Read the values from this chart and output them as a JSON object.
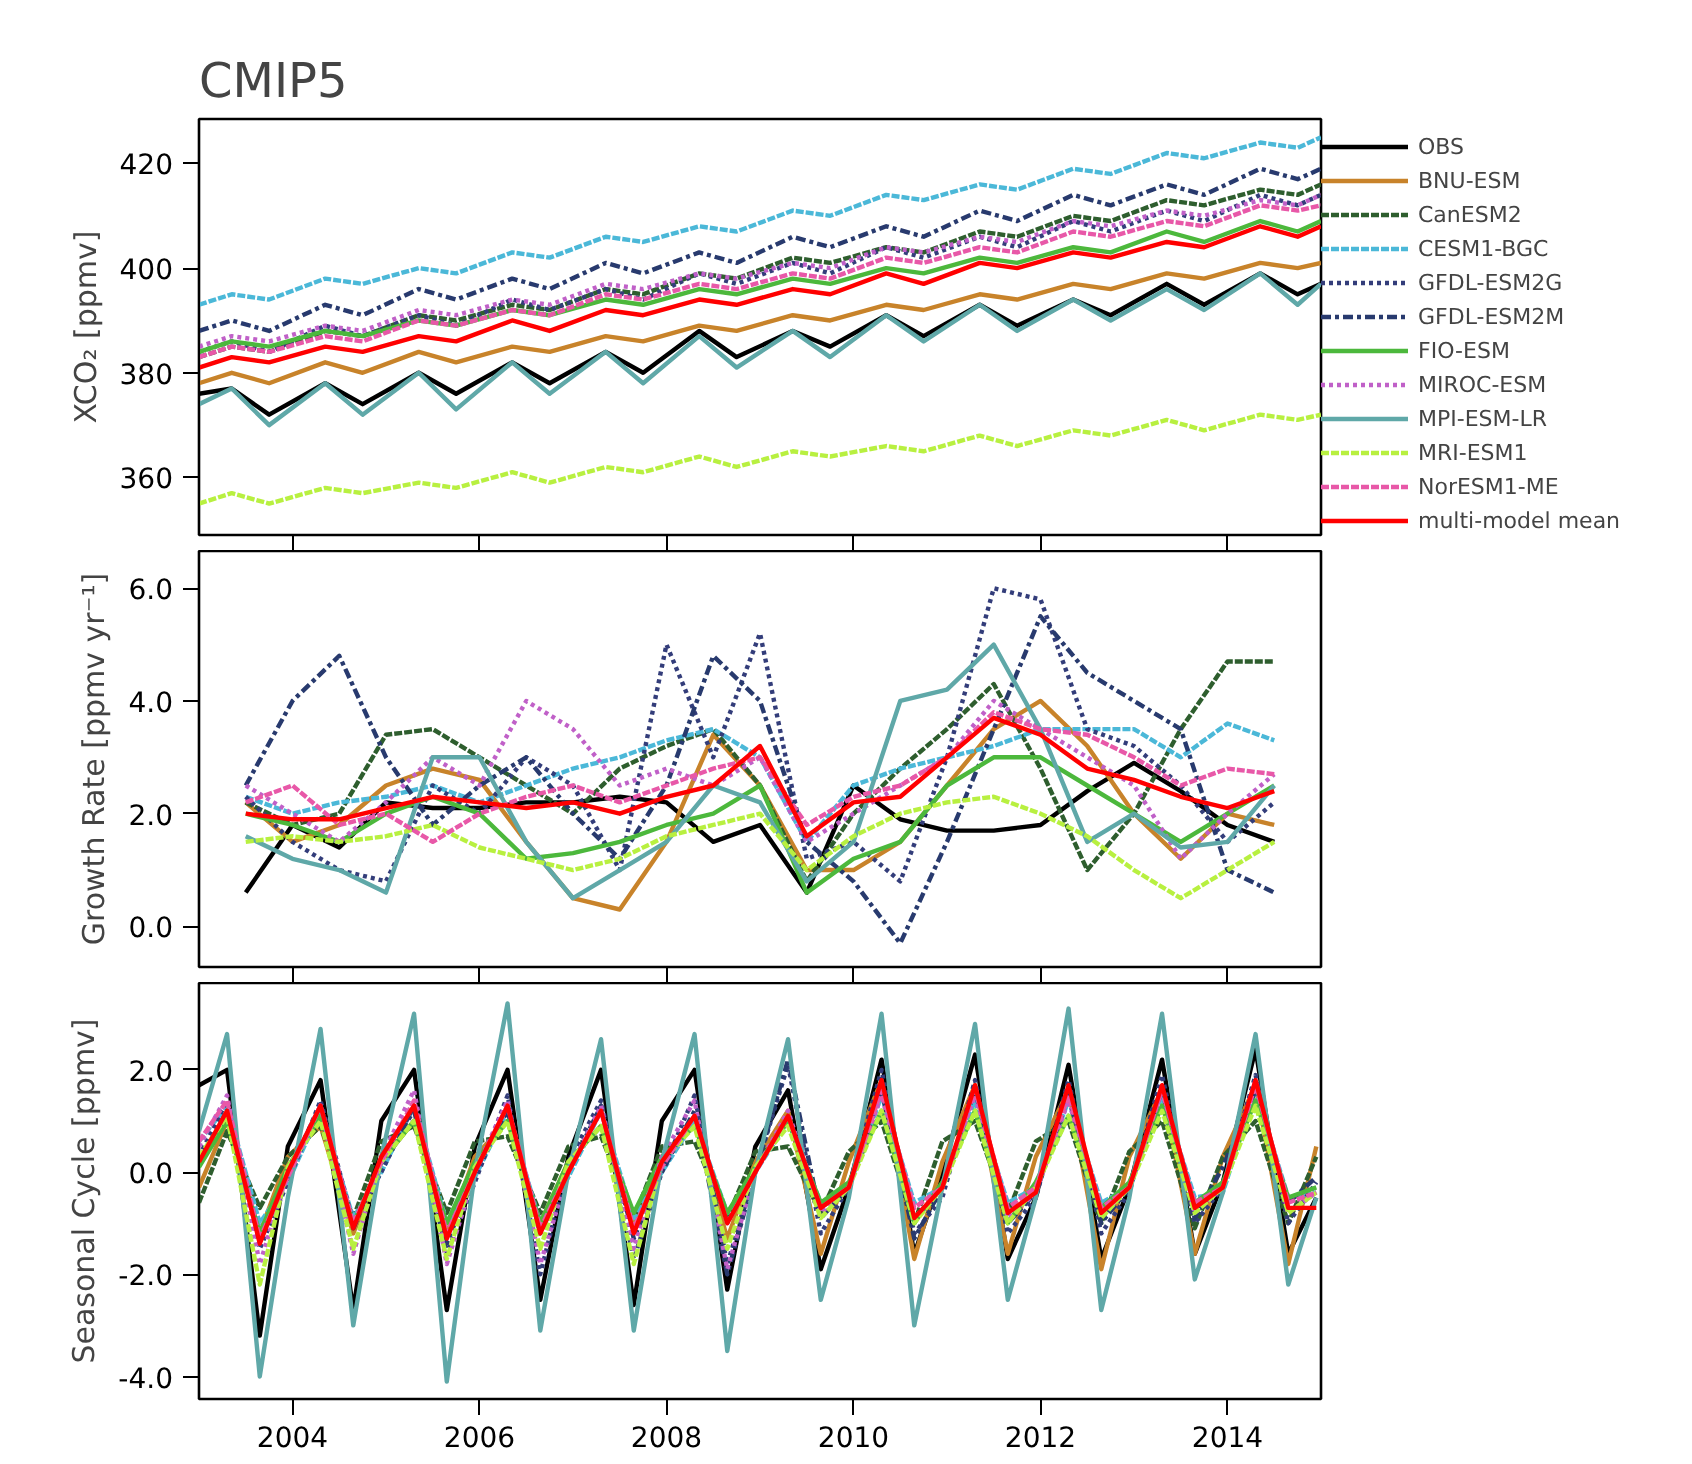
{
  "chart_data": [
    {
      "type": "line",
      "title": "CMIP5",
      "ylabel": "XCO₂ [ppmv]",
      "tick_labels": "y",
      "legend": "right",
      "grid": false,
      "marker": "none",
      "xlim": [
        2003,
        2015
      ],
      "xticks": [
        2004,
        2006,
        2008,
        2010,
        2012,
        2014
      ],
      "ylim": [
        349,
        428.5
      ],
      "yticks": [
        360,
        380,
        400,
        420
      ],
      "x": [
        2003,
        2003.35,
        2003.75,
        2004.35,
        2004.75,
        2005.35,
        2005.75,
        2006.35,
        2006.75,
        2007.35,
        2007.75,
        2008.35,
        2008.75,
        2009.35,
        2009.75,
        2010.35,
        2010.75,
        2011.35,
        2011.75,
        2012.35,
        2012.75,
        2013.35,
        2013.75,
        2014.35,
        2014.75,
        2015
      ],
      "series": [
        {
          "name": "OBS",
          "color": "#000000",
          "line_style": "solid",
          "values": [
            376,
            377,
            372,
            378,
            374,
            380,
            376,
            382,
            378,
            384,
            380,
            388,
            383,
            388,
            385,
            391,
            387,
            393,
            389,
            394,
            391,
            397,
            393,
            399,
            395,
            397
          ]
        },
        {
          "name": "BNU-ESM",
          "color": "#c8832a",
          "line_style": "solid",
          "values": [
            378,
            380,
            378,
            382,
            380,
            384,
            382,
            385,
            384,
            387,
            386,
            389,
            388,
            391,
            390,
            393,
            392,
            395,
            394,
            397,
            396,
            399,
            398,
            401,
            400,
            401
          ]
        },
        {
          "name": "CanESM2",
          "color": "#2e5e2e",
          "line_style": "dashed",
          "values": [
            383,
            385,
            384,
            388,
            387,
            391,
            390,
            393,
            392,
            396,
            395,
            399,
            398,
            402,
            401,
            404,
            403,
            407,
            406,
            410,
            409,
            413,
            412,
            415,
            414,
            416
          ]
        },
        {
          "name": "CESM1-BGC",
          "color": "#4bb8d8",
          "line_style": "dashed",
          "values": [
            393,
            395,
            394,
            398,
            397,
            400,
            399,
            403,
            402,
            406,
            405,
            408,
            407,
            411,
            410,
            414,
            413,
            416,
            415,
            419,
            418,
            422,
            421,
            424,
            423,
            425
          ]
        },
        {
          "name": "GFDL-ESM2G",
          "color": "#333d7a",
          "line_style": "dotted",
          "values": [
            384,
            386,
            384,
            389,
            387,
            391,
            389,
            394,
            392,
            396,
            394,
            399,
            397,
            401,
            399,
            404,
            402,
            406,
            404,
            409,
            407,
            411,
            409,
            414,
            412,
            414
          ]
        },
        {
          "name": "GFDL-ESM2M",
          "color": "#283a6e",
          "line_style": "dashdot",
          "values": [
            388,
            390,
            388,
            393,
            391,
            396,
            394,
            398,
            396,
            401,
            399,
            403,
            401,
            406,
            404,
            408,
            406,
            411,
            409,
            414,
            412,
            416,
            414,
            419,
            417,
            419
          ]
        },
        {
          "name": "FIO-ESM",
          "color": "#4cb83c",
          "line_style": "solid",
          "values": [
            384,
            386,
            385,
            388,
            387,
            390,
            389,
            392,
            391,
            394,
            393,
            396,
            395,
            398,
            397,
            400,
            399,
            402,
            401,
            404,
            403,
            407,
            405,
            409,
            407,
            409
          ]
        },
        {
          "name": "MIROC-ESM",
          "color": "#c060c8",
          "line_style": "dotted",
          "values": [
            385,
            387,
            386,
            389,
            388,
            392,
            391,
            394,
            393,
            397,
            396,
            399,
            398,
            401,
            400,
            404,
            403,
            406,
            405,
            409,
            408,
            411,
            410,
            413,
            412,
            414
          ]
        },
        {
          "name": "MPI-ESM-LR",
          "color": "#5fa8a8",
          "line_style": "solid",
          "values": [
            374,
            377,
            370,
            378,
            372,
            380,
            373,
            382,
            376,
            384,
            378,
            387,
            381,
            388,
            383,
            391,
            386,
            393,
            388,
            394,
            390,
            396,
            392,
            399,
            393,
            397
          ]
        },
        {
          "name": "MRI-ESM1",
          "color": "#b8f040",
          "line_style": "dashed",
          "values": [
            355,
            357,
            355,
            358,
            357,
            359,
            358,
            361,
            359,
            362,
            361,
            364,
            362,
            365,
            364,
            366,
            365,
            368,
            366,
            369,
            368,
            371,
            369,
            372,
            371,
            372
          ]
        },
        {
          "name": "NorESM1-ME",
          "color": "#e858a8",
          "line_style": "dashed",
          "values": [
            383,
            385,
            384,
            387,
            386,
            390,
            389,
            392,
            391,
            395,
            394,
            397,
            396,
            399,
            398,
            402,
            401,
            404,
            403,
            407,
            406,
            409,
            408,
            412,
            411,
            412
          ]
        },
        {
          "name": "multi-model mean",
          "color": "#ff0000",
          "line_style": "solid",
          "values": [
            381,
            383,
            382,
            385,
            384,
            387,
            386,
            390,
            388,
            392,
            391,
            394,
            393,
            396,
            395,
            399,
            397,
            401,
            400,
            403,
            402,
            405,
            404,
            408,
            406,
            408
          ]
        }
      ]
    },
    {
      "type": "line",
      "ylabel": "Growth Rate [ppmv yr⁻¹]",
      "tick_labels": "y",
      "grid": false,
      "marker": "none",
      "xlim": [
        2003,
        2015
      ],
      "xticks": [
        2004,
        2006,
        2008,
        2010,
        2012,
        2014
      ],
      "ylim": [
        -0.72,
        6.66
      ],
      "yticks": [
        {
          "value": 0,
          "label": "0.0"
        },
        {
          "value": 2,
          "label": "2.0"
        },
        {
          "value": 4,
          "label": "4.0"
        },
        {
          "value": 6,
          "label": "6.0"
        }
      ],
      "x": [
        2003.5,
        2004,
        2004.5,
        2005,
        2005.5,
        2006,
        2006.5,
        2007,
        2007.5,
        2008,
        2008.5,
        2009,
        2009.5,
        2010,
        2010.5,
        2011,
        2011.5,
        2012,
        2012.5,
        2013,
        2013.5,
        2014,
        2014.5
      ],
      "series": [
        {
          "color": "#000000",
          "line_style": "solid",
          "values": [
            0.6,
            1.8,
            1.4,
            2.2,
            2.1,
            2.1,
            2.2,
            2.2,
            2.3,
            2.2,
            1.5,
            1.8,
            0.6,
            2.5,
            1.9,
            1.7,
            1.7,
            1.8,
            2.4,
            2.9,
            2.4,
            1.8,
            1.5
          ]
        },
        {
          "color": "#c8832a",
          "line_style": "solid",
          "values": [
            2.2,
            1.5,
            1.8,
            2.5,
            2.8,
            2.6,
            1.5,
            0.5,
            0.3,
            1.5,
            3.4,
            2.5,
            1.0,
            1.0,
            1.5,
            2.5,
            3.5,
            4.0,
            3.2,
            2.0,
            1.2,
            2.0,
            1.8
          ]
        },
        {
          "color": "#2e5e2e",
          "line_style": "dashed",
          "values": [
            2.2,
            1.8,
            2.0,
            3.4,
            3.5,
            3.0,
            2.5,
            2.0,
            2.8,
            3.2,
            3.5,
            2.5,
            0.8,
            2.0,
            2.8,
            3.5,
            4.3,
            2.8,
            1.0,
            2.0,
            3.5,
            4.7,
            4.7
          ]
        },
        {
          "color": "#4bb8d8",
          "line_style": "dashed",
          "values": [
            2.3,
            2.0,
            2.2,
            2.3,
            2.5,
            2.2,
            2.5,
            2.8,
            3.0,
            3.3,
            3.5,
            3.0,
            1.5,
            2.5,
            2.8,
            3.0,
            3.2,
            3.5,
            3.5,
            3.5,
            3.0,
            3.6,
            3.3
          ]
        },
        {
          "color": "#333d7a",
          "line_style": "dotted",
          "values": [
            2.3,
            1.5,
            1.0,
            0.8,
            2.5,
            2.0,
            3.0,
            2.5,
            1.0,
            5.0,
            3.0,
            5.2,
            1.2,
            1.5,
            0.8,
            3.0,
            6.0,
            5.8,
            3.5,
            3.2,
            2.5,
            1.5,
            2.2
          ]
        },
        {
          "color": "#283a6e",
          "line_style": "dashdot",
          "values": [
            2.5,
            4.0,
            4.8,
            3.0,
            1.8,
            2.5,
            3.0,
            2.0,
            1.2,
            2.5,
            4.8,
            4.0,
            1.5,
            0.8,
            -0.3,
            1.5,
            3.5,
            5.5,
            4.5,
            4.0,
            3.5,
            1.0,
            0.6
          ]
        },
        {
          "color": "#4cb83c",
          "line_style": "solid",
          "values": [
            2.0,
            1.8,
            1.5,
            2.0,
            2.3,
            2.0,
            1.2,
            1.3,
            1.5,
            1.8,
            2.0,
            2.5,
            0.6,
            1.2,
            1.5,
            2.5,
            3.0,
            3.0,
            2.5,
            2.0,
            1.5,
            2.0,
            2.5
          ]
        },
        {
          "color": "#c060c8",
          "line_style": "dotted",
          "values": [
            2.5,
            2.0,
            1.5,
            2.2,
            3.0,
            2.5,
            4.0,
            3.5,
            2.5,
            2.8,
            2.5,
            3.0,
            1.5,
            2.0,
            2.5,
            3.0,
            4.0,
            3.5,
            3.0,
            2.5,
            1.2,
            2.0,
            2.7
          ]
        },
        {
          "color": "#5fa8a8",
          "line_style": "solid",
          "values": [
            1.6,
            1.2,
            1.0,
            0.6,
            3.0,
            3.0,
            1.5,
            0.5,
            1.0,
            1.5,
            2.5,
            2.2,
            0.8,
            1.5,
            4.0,
            4.2,
            5.0,
            3.5,
            1.5,
            2.0,
            1.4,
            1.5,
            2.5
          ]
        },
        {
          "color": "#b8f040",
          "line_style": "dashed",
          "values": [
            1.5,
            1.6,
            1.5,
            1.6,
            1.8,
            1.4,
            1.2,
            1.0,
            1.2,
            1.6,
            1.8,
            2.0,
            1.0,
            1.6,
            2.0,
            2.2,
            2.3,
            2.0,
            1.6,
            1.0,
            0.5,
            1.0,
            1.5
          ]
        },
        {
          "color": "#e858a8",
          "line_style": "dashed",
          "values": [
            2.2,
            2.5,
            1.8,
            2.0,
            1.5,
            2.0,
            2.3,
            2.5,
            2.2,
            2.5,
            2.8,
            3.0,
            1.8,
            2.3,
            2.5,
            3.0,
            3.8,
            3.5,
            3.4,
            3.0,
            2.5,
            2.8,
            2.7
          ]
        },
        {
          "color": "#ff0000",
          "line_style": "solid",
          "values": [
            2.0,
            1.9,
            1.9,
            2.1,
            2.3,
            2.2,
            2.1,
            2.2,
            2.0,
            2.3,
            2.5,
            3.2,
            1.6,
            2.2,
            2.3,
            3.0,
            3.7,
            3.4,
            2.8,
            2.6,
            2.3,
            2.1,
            2.4
          ]
        }
      ]
    },
    {
      "type": "line",
      "ylabel": "Seasonal Cycle [ppmv]",
      "grid": false,
      "marker": "none",
      "xlim": [
        2003,
        2015
      ],
      "xticks": [
        2004,
        2006,
        2008,
        2010,
        2012,
        2014
      ],
      "ylim": [
        -4.44,
        3.7
      ],
      "yticks": [
        {
          "value": -4,
          "label": "-4.0"
        },
        {
          "value": -2,
          "label": "-2.0"
        },
        {
          "value": 0,
          "label": "0.0"
        },
        {
          "value": 2,
          "label": "2.0"
        }
      ],
      "x": [
        2003,
        2003.3,
        2003.65,
        2003.95,
        2004.3,
        2004.65,
        2004.95,
        2005.3,
        2005.65,
        2005.95,
        2006.3,
        2006.65,
        2006.95,
        2007.3,
        2007.65,
        2007.95,
        2008.3,
        2008.65,
        2008.95,
        2009.3,
        2009.65,
        2009.95,
        2010.3,
        2010.65,
        2010.95,
        2011.3,
        2011.65,
        2011.95,
        2012.3,
        2012.65,
        2012.95,
        2013.3,
        2013.65,
        2013.95,
        2014.3,
        2014.65,
        2014.95
      ],
      "series": [
        {
          "color": "#000000",
          "line_style": "solid",
          "values": [
            1.7,
            2.0,
            -3.2,
            0.5,
            1.8,
            -2.7,
            1.0,
            2.0,
            -2.7,
            0.5,
            2.0,
            -2.5,
            0.3,
            2.0,
            -2.6,
            1.0,
            2.0,
            -2.3,
            0.5,
            1.6,
            -1.9,
            -0.3,
            2.2,
            -1.6,
            0.0,
            2.3,
            -1.7,
            -0.5,
            2.1,
            -1.7,
            -0.3,
            2.2,
            -1.6,
            -0.2,
            2.4,
            -1.6,
            -0.5
          ]
        },
        {
          "color": "#c8832a",
          "line_style": "solid",
          "values": [
            -0.3,
            1.0,
            -1.2,
            0.3,
            0.9,
            -1.2,
            0.2,
            1.0,
            -1.2,
            0.3,
            1.0,
            -1.0,
            0.2,
            0.9,
            -1.0,
            0.3,
            1.0,
            -1.3,
            0.2,
            1.2,
            -1.6,
            0.2,
            1.8,
            -1.7,
            0.2,
            1.7,
            -1.6,
            0.3,
            1.6,
            -1.9,
            0.3,
            1.6,
            -1.6,
            0.3,
            1.7,
            -1.8,
            0.5
          ]
        },
        {
          "color": "#2e5e2e",
          "line_style": "dashed",
          "values": [
            -0.6,
            0.8,
            -0.7,
            0.3,
            0.9,
            -0.9,
            0.6,
            0.9,
            -0.8,
            0.6,
            0.7,
            -0.8,
            0.5,
            0.7,
            -0.9,
            0.5,
            0.6,
            -0.9,
            0.4,
            0.5,
            -0.8,
            0.4,
            1.0,
            -1.0,
            0.6,
            1.0,
            -0.8,
            0.6,
            1.0,
            -1.0,
            0.4,
            1.0,
            -1.1,
            0.3,
            1.0,
            -1.0,
            0.3
          ]
        },
        {
          "color": "#4bb8d8",
          "line_style": "dashed",
          "values": [
            0.6,
            1.3,
            -1.0,
            -0.2,
            1.2,
            -0.9,
            0.0,
            1.3,
            -1.0,
            -0.1,
            1.2,
            -1.0,
            -0.1,
            1.2,
            -0.9,
            0.0,
            1.0,
            -0.8,
            0.0,
            1.0,
            -0.6,
            -0.3,
            1.5,
            -0.6,
            -0.3,
            1.4,
            -0.6,
            -0.3,
            1.4,
            -0.6,
            -0.3,
            1.5,
            -0.5,
            -0.4,
            1.6,
            -0.5,
            -0.4
          ]
        },
        {
          "color": "#333d7a",
          "line_style": "dotted",
          "values": [
            0.3,
            1.4,
            -1.5,
            -0.2,
            1.4,
            -1.0,
            0.0,
            1.3,
            -1.6,
            -0.2,
            1.5,
            -2.0,
            0.2,
            1.4,
            -1.7,
            0.0,
            1.5,
            -1.8,
            0.0,
            2.1,
            -1.2,
            -0.3,
            2.0,
            -1.2,
            -0.5,
            1.8,
            -1.2,
            -0.5,
            1.8,
            -1.2,
            -0.4,
            1.9,
            -1.0,
            -0.3,
            1.9,
            -1.0,
            -0.2
          ]
        },
        {
          "color": "#283a6e",
          "line_style": "dashdot",
          "values": [
            0.2,
            1.2,
            -1.3,
            0.0,
            1.3,
            -1.1,
            0.2,
            1.2,
            -1.4,
            0.0,
            1.2,
            -1.2,
            0.0,
            1.3,
            -1.3,
            0.0,
            1.2,
            -2.0,
            0.0,
            2.2,
            -0.9,
            -0.3,
            1.6,
            -1.3,
            -0.3,
            1.6,
            -1.0,
            -0.4,
            1.5,
            -1.0,
            -0.3,
            1.6,
            -0.9,
            0.1,
            1.6,
            -0.6,
            -0.1
          ]
        },
        {
          "color": "#4cb83c",
          "line_style": "solid",
          "values": [
            0.1,
            1.0,
            -1.2,
            0.1,
            1.1,
            -1.0,
            0.2,
            1.0,
            -1.0,
            0.2,
            1.0,
            -1.0,
            0.2,
            0.9,
            -0.8,
            0.3,
            0.9,
            -0.8,
            0.1,
            1.0,
            -0.6,
            -0.2,
            1.2,
            -1.0,
            -0.2,
            1.2,
            -1.0,
            -0.2,
            1.1,
            -0.7,
            -0.2,
            1.3,
            -0.6,
            -0.2,
            1.4,
            -0.5,
            -0.3
          ]
        },
        {
          "color": "#c060c8",
          "line_style": "dotted",
          "values": [
            0.5,
            1.5,
            -1.8,
            0.0,
            1.3,
            -1.6,
            0.3,
            1.6,
            -1.8,
            0.0,
            1.4,
            -1.8,
            0.0,
            1.3,
            -1.5,
            0.3,
            1.4,
            -1.9,
            0.0,
            1.2,
            -0.8,
            -0.3,
            1.5,
            -0.9,
            -0.3,
            1.5,
            -0.9,
            -0.4,
            1.4,
            -0.8,
            -0.3,
            1.6,
            -0.8,
            -0.3,
            1.8,
            -0.8,
            -0.4
          ]
        },
        {
          "color": "#5fa8a8",
          "line_style": "solid",
          "values": [
            0.8,
            2.7,
            -4.0,
            -0.5,
            2.8,
            -3.0,
            0.3,
            3.1,
            -4.1,
            0.0,
            3.3,
            -3.1,
            0.0,
            2.6,
            -3.1,
            0.2,
            2.7,
            -3.5,
            0.0,
            2.6,
            -2.5,
            -0.5,
            3.1,
            -3.0,
            -0.3,
            2.9,
            -2.5,
            -0.5,
            3.2,
            -2.7,
            -0.5,
            3.1,
            -2.1,
            -0.4,
            2.7,
            -2.2,
            -0.5
          ]
        },
        {
          "color": "#b8f040",
          "line_style": "dashed",
          "values": [
            0.3,
            1.1,
            -2.2,
            0.1,
            1.0,
            -1.5,
            0.2,
            1.0,
            -1.7,
            0.1,
            1.0,
            -1.5,
            0.2,
            0.9,
            -1.8,
            0.2,
            0.9,
            -1.5,
            0.1,
            0.9,
            -0.9,
            -0.3,
            1.2,
            -1.0,
            -0.3,
            1.2,
            -1.0,
            -0.3,
            1.1,
            -0.9,
            -0.3,
            1.2,
            -0.8,
            -0.3,
            1.3,
            -0.8,
            -0.4
          ]
        },
        {
          "color": "#e858a8",
          "line_style": "dashed",
          "values": [
            0.6,
            1.4,
            -1.3,
            -0.1,
            1.3,
            -1.0,
            0.2,
            1.4,
            -1.2,
            0.0,
            1.3,
            -1.1,
            0.0,
            1.2,
            -1.1,
            0.1,
            1.1,
            -1.0,
            0.0,
            1.1,
            -0.7,
            -0.3,
            1.6,
            -0.7,
            -0.3,
            1.6,
            -0.7,
            -0.3,
            1.5,
            -0.7,
            -0.3,
            1.6,
            -0.6,
            -0.3,
            1.7,
            -0.6,
            -0.4
          ]
        },
        {
          "color": "#ff0000",
          "line_style": "solid",
          "values": [
            0.2,
            1.2,
            -1.4,
            0.0,
            1.3,
            -1.1,
            0.3,
            1.3,
            -1.3,
            0.0,
            1.3,
            -1.2,
            0.0,
            1.2,
            -1.2,
            0.2,
            1.1,
            -1.0,
            0.0,
            1.1,
            -0.7,
            -0.3,
            1.8,
            -0.9,
            -0.3,
            1.7,
            -0.8,
            -0.4,
            1.7,
            -0.8,
            -0.3,
            1.7,
            -0.7,
            -0.3,
            1.8,
            -0.7,
            -0.7
          ]
        }
      ]
    }
  ]
}
